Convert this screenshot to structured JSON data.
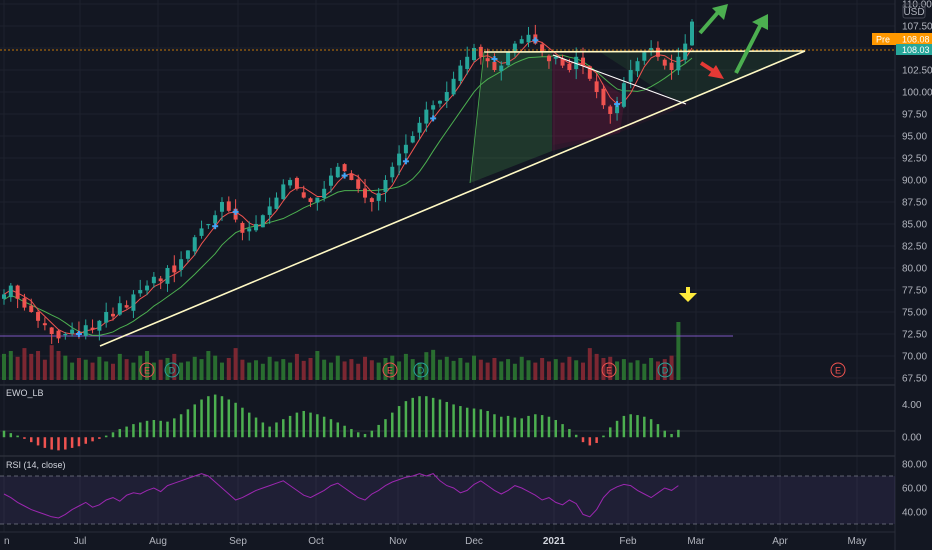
{
  "chart_data": [
    {
      "type": "candlestick",
      "currency_label": "USD",
      "pre_market_label": "Pre",
      "pre_market_price": "108.08",
      "last_price": "108.03",
      "x_tick_labels": [
        "n",
        "Jul",
        "Aug",
        "Sep",
        "Oct",
        "Nov",
        "Dec",
        "2021",
        "Feb",
        "Mar",
        "Apr",
        "May"
      ],
      "y_tick_labels": [
        "110.00",
        "107.50",
        "105.00",
        "102.50",
        "100.00",
        "97.50",
        "95.00",
        "92.50",
        "90.00",
        "87.50",
        "85.00",
        "82.50",
        "80.00",
        "77.50",
        "75.00",
        "72.50",
        "70.00",
        "67.50"
      ],
      "ylim": [
        67.5,
        110
      ],
      "price_path": [
        77,
        78,
        76.5,
        75.5,
        75,
        74,
        73.5,
        72.5,
        72,
        72.5,
        73,
        72.5,
        73.5,
        73,
        74,
        75,
        74.5,
        76,
        75.5,
        77,
        77.5,
        78,
        79,
        78.5,
        80,
        79.5,
        81,
        82,
        83.5,
        84.5,
        85,
        86,
        87.5,
        86.5,
        85.5,
        84,
        84.5,
        85,
        86,
        87,
        88,
        89.5,
        90,
        89,
        88,
        87.5,
        88,
        89,
        90.5,
        91.5,
        91,
        90,
        89,
        88,
        87.5,
        88.5,
        90,
        91.5,
        93,
        94,
        95,
        96.5,
        98,
        98.5,
        99,
        100,
        101.5,
        103,
        104,
        105,
        104,
        103.5,
        102.5,
        103,
        104.5,
        105.5,
        106,
        106.5,
        105.5,
        104.5,
        103.5,
        104,
        103,
        102.5,
        104,
        103,
        101.5,
        100,
        98.5,
        97.5,
        98.5,
        101,
        102.5,
        103.5,
        104.5,
        105,
        104,
        103,
        102.5,
        104,
        105.5,
        108
      ],
      "volume_ylim": [
        0,
        1
      ],
      "volume_path": [
        0.45,
        0.5,
        0.4,
        0.55,
        0.45,
        0.5,
        0.35,
        0.6,
        0.5,
        0.42,
        0.3,
        0.38,
        0.35,
        0.3,
        0.4,
        0.32,
        0.28,
        0.45,
        0.36,
        0.3,
        0.42,
        0.5,
        0.3,
        0.35,
        0.38,
        0.45,
        0.3,
        0.32,
        0.4,
        0.36,
        0.5,
        0.42,
        0.3,
        0.38,
        0.55,
        0.35,
        0.3,
        0.34,
        0.28,
        0.4,
        0.32,
        0.36,
        0.3,
        0.45,
        0.33,
        0.38,
        0.5,
        0.35,
        0.3,
        0.42,
        0.32,
        0.36,
        0.28,
        0.4,
        0.34,
        0.3,
        0.38,
        0.42,
        0.32,
        0.45,
        0.36,
        0.3,
        0.48,
        0.52,
        0.35,
        0.4,
        0.33,
        0.38,
        0.3,
        0.42,
        0.35,
        0.3,
        0.38,
        0.32,
        0.36,
        0.28,
        0.4,
        0.34,
        0.3,
        0.38,
        0.32,
        0.36,
        0.3,
        0.4,
        0.34,
        0.3,
        0.55,
        0.45,
        0.38,
        0.4,
        0.32,
        0.36,
        0.3,
        0.34,
        0.28,
        0.38,
        0.32,
        0.36,
        0.42,
        1.0
      ],
      "volume_reference_level": 0.58,
      "earnings_marker_label": "E",
      "dividend_marker_label": "D",
      "annotations": {
        "trendline": "ascending support",
        "resistance": 108.1,
        "arrows": [
          "green up",
          "green up",
          "red down",
          "yellow down"
        ]
      }
    },
    {
      "type": "bar",
      "title": "EWO_LB",
      "y_tick_labels": [
        "4.00",
        "0.00"
      ],
      "ylim": [
        -1.8,
        6
      ],
      "values": [
        0.8,
        0.5,
        0.2,
        -0.2,
        -0.6,
        -1.0,
        -1.3,
        -1.5,
        -1.6,
        -1.5,
        -1.3,
        -1.1,
        -0.8,
        -0.5,
        -0.2,
        0.2,
        0.6,
        1.0,
        1.3,
        1.6,
        1.8,
        2.0,
        2.1,
        2.0,
        1.9,
        2.3,
        2.8,
        3.4,
        4.0,
        4.6,
        5.0,
        5.2,
        5.0,
        4.6,
        4.2,
        3.6,
        3.0,
        2.4,
        1.8,
        1.3,
        1.8,
        2.2,
        2.6,
        3.0,
        3.2,
        3.0,
        2.8,
        2.5,
        2.2,
        1.8,
        1.4,
        1.0,
        0.6,
        0.4,
        0.8,
        1.5,
        2.2,
        3.0,
        3.8,
        4.4,
        4.8,
        5.0,
        5.0,
        4.8,
        4.6,
        4.3,
        4.0,
        3.8,
        3.6,
        3.5,
        3.4,
        3.2,
        2.8,
        2.5,
        2.6,
        2.4,
        2.3,
        2.6,
        2.8,
        2.7,
        2.5,
        2.1,
        1.6,
        1.0,
        0.3,
        -0.6,
        -1.0,
        -0.7,
        0.2,
        1.2,
        2.0,
        2.6,
        2.8,
        2.7,
        2.5,
        2.2,
        1.6,
        0.8,
        0.4,
        0.9
      ]
    },
    {
      "type": "line",
      "title": "RSI (14, close)",
      "y_tick_labels": [
        "80.00",
        "60.00",
        "40.00"
      ],
      "ylim": [
        25,
        85
      ],
      "bands": [
        70,
        30
      ],
      "values": [
        55,
        52,
        48,
        45,
        42,
        40,
        38,
        36,
        35,
        38,
        42,
        45,
        48,
        44,
        46,
        50,
        52,
        49,
        54,
        56,
        55,
        58,
        60,
        57,
        62,
        64,
        66,
        68,
        70,
        72,
        70,
        65,
        60,
        55,
        50,
        52,
        55,
        58,
        60,
        62,
        64,
        66,
        62,
        58,
        54,
        52,
        55,
        58,
        62,
        64,
        60,
        56,
        52,
        50,
        55,
        58,
        62,
        65,
        67,
        69,
        70,
        72,
        70,
        72,
        66,
        62,
        60,
        56,
        58,
        63,
        66,
        62,
        58,
        55,
        58,
        62,
        60,
        57,
        54,
        50,
        52,
        48,
        46,
        50,
        47,
        38,
        36,
        42,
        52,
        58,
        61,
        63,
        62,
        58,
        55,
        52,
        56,
        60,
        58,
        62
      ]
    }
  ]
}
